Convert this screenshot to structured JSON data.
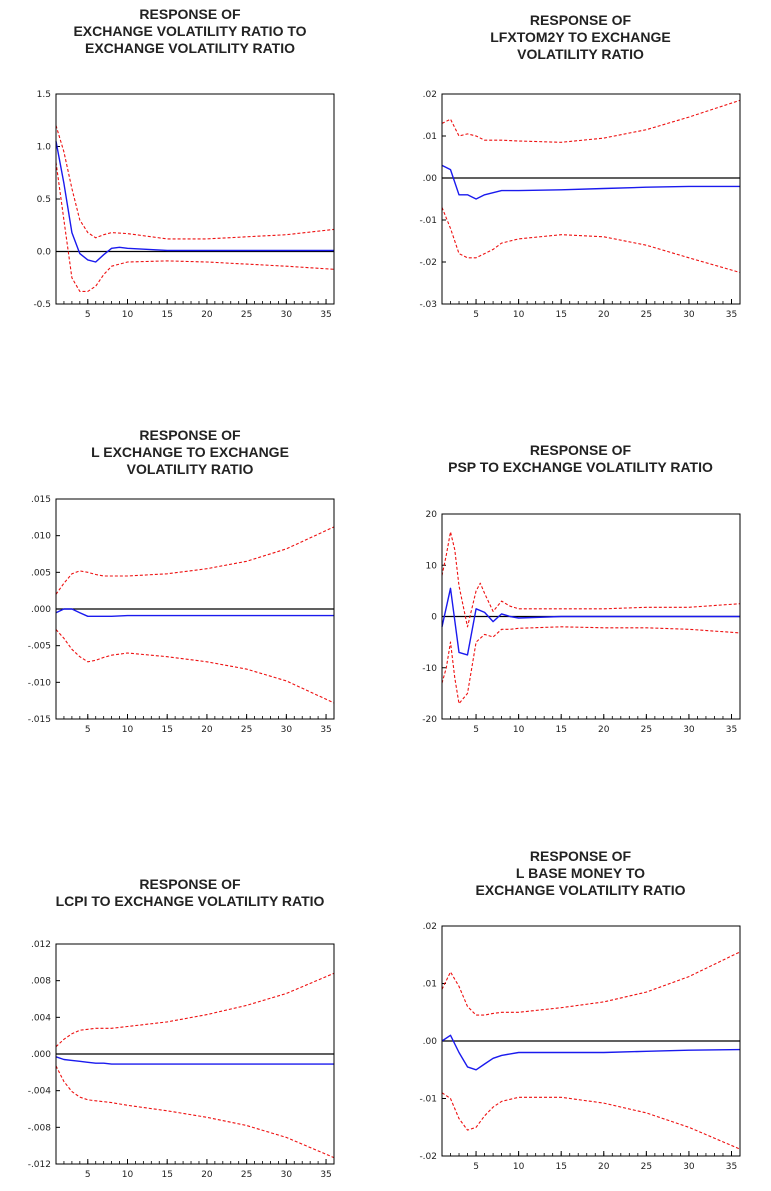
{
  "colors": {
    "response": "#1a1aee",
    "band": "#ee1111",
    "zero": "#000000",
    "frame": "#000000",
    "title": "#222222"
  },
  "chart_data": [
    {
      "type": "line",
      "title_lines": [
        "RESPONSE OF",
        "EXCHANGE VOLATILITY RATIO TO",
        "EXCHANGE VOLATILITY RATIO"
      ],
      "xlim": [
        1,
        36
      ],
      "ylim": [
        -0.5,
        1.5
      ],
      "xticks": [
        5,
        10,
        15,
        20,
        25,
        30,
        35
      ],
      "xtick_labels": [
        "5",
        "10",
        "15",
        "20",
        "25",
        "30",
        "35"
      ],
      "yticks": [
        -0.5,
        0,
        0.5,
        1,
        1.5
      ],
      "ytick_labels": [
        "-0.5",
        "0.0",
        "0.5",
        "1.0",
        "1.5"
      ],
      "series": [
        {
          "role": "response",
          "x": [
            1,
            2,
            3,
            4,
            5,
            6,
            7,
            8,
            9,
            10,
            15,
            20,
            25,
            30,
            36
          ],
          "y": [
            1.05,
            0.65,
            0.18,
            -0.02,
            -0.08,
            -0.1,
            -0.03,
            0.03,
            0.04,
            0.03,
            0.01,
            0.01,
            0.01,
            0.01,
            0.01
          ]
        },
        {
          "role": "upper",
          "x": [
            1,
            2,
            3,
            4,
            5,
            6,
            7,
            8,
            10,
            15,
            20,
            25,
            30,
            36
          ],
          "y": [
            1.2,
            0.95,
            0.6,
            0.3,
            0.18,
            0.13,
            0.16,
            0.18,
            0.17,
            0.12,
            0.12,
            0.14,
            0.16,
            0.21
          ]
        },
        {
          "role": "lower",
          "x": [
            1,
            2,
            3,
            4,
            5,
            6,
            7,
            8,
            10,
            15,
            20,
            25,
            30,
            36
          ],
          "y": [
            0.85,
            0.3,
            -0.25,
            -0.38,
            -0.38,
            -0.33,
            -0.22,
            -0.14,
            -0.1,
            -0.09,
            -0.1,
            -0.12,
            -0.14,
            -0.17
          ]
        }
      ]
    },
    {
      "type": "line",
      "title_lines": [
        "RESPONSE OF",
        "LFXTOM2Y TO EXCHANGE",
        "VOLATILITY RATIO"
      ],
      "xlim": [
        1,
        36
      ],
      "ylim": [
        -0.03,
        0.02
      ],
      "xticks": [
        5,
        10,
        15,
        20,
        25,
        30,
        35
      ],
      "xtick_labels": [
        "5",
        "10",
        "15",
        "20",
        "25",
        "30",
        "35"
      ],
      "yticks": [
        -0.03,
        -0.02,
        -0.01,
        0,
        0.01,
        0.02
      ],
      "ytick_labels": [
        "-.03",
        "-.02",
        "-.01",
        ".00",
        ".01",
        ".02"
      ],
      "series": [
        {
          "role": "response",
          "x": [
            1,
            2,
            3,
            4,
            5,
            6,
            7,
            8,
            10,
            15,
            20,
            25,
            30,
            36
          ],
          "y": [
            0.003,
            0.002,
            -0.004,
            -0.004,
            -0.005,
            -0.004,
            -0.0035,
            -0.003,
            -0.003,
            -0.0028,
            -0.0025,
            -0.0022,
            -0.002,
            -0.002
          ]
        },
        {
          "role": "upper",
          "x": [
            1,
            2,
            3,
            4,
            5,
            6,
            7,
            8,
            10,
            15,
            20,
            25,
            30,
            36
          ],
          "y": [
            0.013,
            0.014,
            0.01,
            0.0105,
            0.01,
            0.009,
            0.009,
            0.009,
            0.0088,
            0.0085,
            0.0095,
            0.0115,
            0.0145,
            0.0185
          ]
        },
        {
          "role": "lower",
          "x": [
            1,
            2,
            3,
            4,
            5,
            6,
            7,
            8,
            10,
            15,
            20,
            25,
            30,
            36
          ],
          "y": [
            -0.007,
            -0.012,
            -0.018,
            -0.019,
            -0.019,
            -0.018,
            -0.017,
            -0.0155,
            -0.0145,
            -0.0135,
            -0.014,
            -0.016,
            -0.019,
            -0.0225
          ]
        }
      ]
    },
    {
      "type": "line",
      "title_lines": [
        "RESPONSE OF",
        "L EXCHANGE TO EXCHANGE",
        "VOLATILITY RATIO"
      ],
      "xlim": [
        1,
        36
      ],
      "ylim": [
        -0.015,
        0.015
      ],
      "xticks": [
        5,
        10,
        15,
        20,
        25,
        30,
        35
      ],
      "xtick_labels": [
        "5",
        "10",
        "15",
        "20",
        "25",
        "30",
        "35"
      ],
      "yticks": [
        -0.015,
        -0.01,
        -0.005,
        0,
        0.005,
        0.01,
        0.015
      ],
      "ytick_labels": [
        "-.015",
        "-.010",
        "-.005",
        ".000",
        ".005",
        ".010",
        ".015"
      ],
      "series": [
        {
          "role": "response",
          "x": [
            1,
            2,
            3,
            4,
            5,
            6,
            7,
            8,
            10,
            15,
            20,
            25,
            30,
            36
          ],
          "y": [
            -0.0005,
            0,
            0,
            -0.0005,
            -0.001,
            -0.001,
            -0.001,
            -0.001,
            -0.0009,
            -0.0009,
            -0.0009,
            -0.0009,
            -0.0009,
            -0.0009
          ]
        },
        {
          "role": "upper",
          "x": [
            1,
            2,
            3,
            4,
            5,
            6,
            7,
            8,
            10,
            15,
            20,
            25,
            30,
            36
          ],
          "y": [
            0.002,
            0.0035,
            0.0048,
            0.0052,
            0.005,
            0.0047,
            0.0045,
            0.0045,
            0.0045,
            0.0048,
            0.0055,
            0.0065,
            0.0082,
            0.0112
          ]
        },
        {
          "role": "lower",
          "x": [
            1,
            2,
            3,
            4,
            5,
            6,
            7,
            8,
            10,
            15,
            20,
            25,
            30,
            36
          ],
          "y": [
            -0.0028,
            -0.004,
            -0.0055,
            -0.0065,
            -0.0072,
            -0.007,
            -0.0066,
            -0.0063,
            -0.006,
            -0.0065,
            -0.0072,
            -0.0082,
            -0.0098,
            -0.0128
          ]
        }
      ]
    },
    {
      "type": "line",
      "title_lines": [
        "RESPONSE OF",
        "PSP TO EXCHANGE VOLATILITY RATIO"
      ],
      "xlim": [
        1,
        36
      ],
      "ylim": [
        -20,
        20
      ],
      "xticks": [
        5,
        10,
        15,
        20,
        25,
        30,
        35
      ],
      "xtick_labels": [
        "5",
        "10",
        "15",
        "20",
        "25",
        "30",
        "35"
      ],
      "yticks": [
        -20,
        -10,
        0,
        10,
        20
      ],
      "ytick_labels": [
        "-20",
        "-10",
        "0",
        "10",
        "20"
      ],
      "series": [
        {
          "role": "response",
          "x": [
            1,
            2,
            3,
            4,
            5,
            6,
            7,
            8,
            9,
            10,
            15,
            20,
            25,
            30,
            36
          ],
          "y": [
            -2,
            5.5,
            -7,
            -7.5,
            1.5,
            0.8,
            -1,
            0.5,
            0,
            -0.3,
            0,
            0,
            0,
            0,
            0
          ]
        },
        {
          "role": "upper",
          "x": [
            1,
            1.5,
            2,
            2.5,
            3,
            4,
            5,
            5.5,
            6,
            7,
            8,
            9,
            10,
            15,
            20,
            25,
            30,
            36
          ],
          "y": [
            8,
            12,
            16.5,
            13,
            6,
            -2,
            5,
            6.5,
            4.5,
            1,
            3,
            2,
            1.5,
            1.5,
            1.5,
            1.8,
            1.8,
            2.5
          ]
        },
        {
          "role": "lower",
          "x": [
            1,
            1.5,
            2,
            2.5,
            3,
            4,
            5,
            6,
            7,
            8,
            9,
            10,
            15,
            20,
            25,
            30,
            36
          ],
          "y": [
            -13,
            -10,
            -5,
            -12,
            -17,
            -15,
            -5,
            -3.5,
            -4,
            -2.5,
            -2.5,
            -2.3,
            -2,
            -2.2,
            -2.2,
            -2.5,
            -3.2
          ]
        }
      ]
    },
    {
      "type": "line",
      "title_lines": [
        "RESPONSE OF",
        "LCPI TO EXCHANGE VOLATILITY RATIO"
      ],
      "xlim": [
        1,
        36
      ],
      "ylim": [
        -0.012,
        0.012
      ],
      "xticks": [
        5,
        10,
        15,
        20,
        25,
        30,
        35
      ],
      "xtick_labels": [
        "5",
        "10",
        "15",
        "20",
        "25",
        "30",
        "35"
      ],
      "yticks": [
        -0.012,
        -0.008,
        -0.004,
        0,
        0.004,
        0.008,
        0.012
      ],
      "ytick_labels": [
        "-.012",
        "-.008",
        "-.004",
        ".000",
        ".004",
        ".008",
        ".012"
      ],
      "series": [
        {
          "role": "response",
          "x": [
            1,
            2,
            3,
            4,
            5,
            6,
            7,
            8,
            10,
            15,
            20,
            25,
            30,
            36
          ],
          "y": [
            -0.0003,
            -0.0006,
            -0.0007,
            -0.0008,
            -0.0009,
            -0.001,
            -0.001,
            -0.0011,
            -0.0011,
            -0.0011,
            -0.0011,
            -0.0011,
            -0.0011,
            -0.0011
          ]
        },
        {
          "role": "upper",
          "x": [
            1,
            2,
            3,
            4,
            5,
            6,
            7,
            8,
            10,
            15,
            20,
            25,
            30,
            36
          ],
          "y": [
            0.0008,
            0.0016,
            0.0022,
            0.0026,
            0.0027,
            0.0028,
            0.0028,
            0.0028,
            0.003,
            0.0035,
            0.0043,
            0.0053,
            0.0066,
            0.0088
          ]
        },
        {
          "role": "lower",
          "x": [
            1,
            2,
            3,
            4,
            5,
            6,
            7,
            8,
            10,
            15,
            20,
            25,
            30,
            36
          ],
          "y": [
            -0.0013,
            -0.003,
            -0.0041,
            -0.0047,
            -0.005,
            -0.0051,
            -0.0052,
            -0.0053,
            -0.0056,
            -0.0062,
            -0.0069,
            -0.0078,
            -0.0091,
            -0.0113
          ]
        }
      ]
    },
    {
      "type": "line",
      "title_lines": [
        "RESPONSE OF",
        "L BASE MONEY TO",
        "EXCHANGE VOLATILITY RATIO"
      ],
      "xlim": [
        1,
        36
      ],
      "ylim": [
        -0.02,
        0.02
      ],
      "xticks": [
        5,
        10,
        15,
        20,
        25,
        30,
        35
      ],
      "xtick_labels": [
        "5",
        "10",
        "15",
        "20",
        "25",
        "30",
        "35"
      ],
      "yticks": [
        -0.02,
        -0.01,
        0,
        0.01,
        0.02
      ],
      "ytick_labels": [
        "-.02",
        "-.01",
        ".00",
        ".01",
        ".02"
      ],
      "series": [
        {
          "role": "response",
          "x": [
            1,
            2,
            3,
            4,
            5,
            6,
            7,
            8,
            10,
            15,
            20,
            25,
            30,
            36
          ],
          "y": [
            0,
            0.001,
            -0.002,
            -0.0045,
            -0.005,
            -0.004,
            -0.003,
            -0.0025,
            -0.002,
            -0.002,
            -0.002,
            -0.0018,
            -0.0016,
            -0.0015
          ]
        },
        {
          "role": "upper",
          "x": [
            1,
            2,
            3,
            4,
            5,
            6,
            7,
            8,
            10,
            15,
            20,
            25,
            30,
            36
          ],
          "y": [
            0.009,
            0.012,
            0.0095,
            0.006,
            0.0045,
            0.0045,
            0.0048,
            0.005,
            0.005,
            0.0058,
            0.0068,
            0.0085,
            0.0112,
            0.0155
          ]
        },
        {
          "role": "lower",
          "x": [
            1,
            2,
            3,
            4,
            5,
            6,
            7,
            8,
            10,
            15,
            20,
            25,
            30,
            36
          ],
          "y": [
            -0.009,
            -0.01,
            -0.0135,
            -0.0155,
            -0.015,
            -0.013,
            -0.0115,
            -0.0105,
            -0.0098,
            -0.0098,
            -0.0108,
            -0.0125,
            -0.015,
            -0.0188
          ]
        }
      ]
    }
  ]
}
